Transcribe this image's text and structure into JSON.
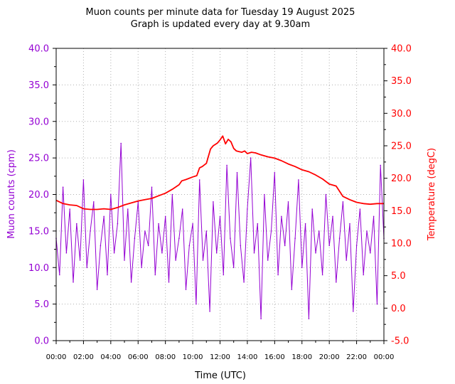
{
  "chart_data": {
    "type": "line",
    "title": "Muon counts per minute data for Tuesday 19 August 2025",
    "subtitle": "Graph is updated every day at 9.30am",
    "xlabel": "Time (UTC)",
    "ylabel": "Muon counts (cpm)",
    "ylabel_right": "Temperature (degC)",
    "x_ticks": [
      "00:00",
      "02:00",
      "04:00",
      "06:00",
      "08:00",
      "10:00",
      "12:00",
      "14:00",
      "16:00",
      "18:00",
      "20:00",
      "22:00",
      "00:00"
    ],
    "y_ticks_left": [
      "0.0",
      "5.0",
      "10.0",
      "15.0",
      "20.0",
      "25.0",
      "30.0",
      "35.0",
      "40.0"
    ],
    "y_ticks_right": [
      "-5.0",
      "0.0",
      "5.0",
      "10.0",
      "15.0",
      "20.0",
      "25.0",
      "30.0",
      "35.0",
      "40.0"
    ],
    "xlim": [
      0,
      24
    ],
    "ylim_left": [
      0,
      40
    ],
    "ylim_right": [
      -5,
      40
    ],
    "grid": true,
    "colors": {
      "muon": "#9400d3",
      "temperature": "#ff0000"
    },
    "series": [
      {
        "axis": "left",
        "x": [
          0.0,
          0.25,
          0.5,
          0.75,
          1.0,
          1.25,
          1.5,
          1.75,
          2.0,
          2.25,
          2.5,
          2.75,
          3.0,
          3.25,
          3.5,
          3.75,
          4.0,
          4.25,
          4.5,
          4.75,
          5.0,
          5.25,
          5.5,
          5.75,
          6.0,
          6.25,
          6.5,
          6.75,
          7.0,
          7.25,
          7.5,
          7.75,
          8.0,
          8.25,
          8.5,
          8.75,
          9.0,
          9.25,
          9.5,
          9.75,
          10.0,
          10.25,
          10.5,
          10.75,
          11.0,
          11.25,
          11.5,
          11.75,
          12.0,
          12.25,
          12.5,
          12.75,
          13.0,
          13.25,
          13.5,
          13.75,
          14.0,
          14.25,
          14.5,
          14.75,
          15.0,
          15.25,
          15.5,
          15.75,
          16.0,
          16.25,
          16.5,
          16.75,
          17.0,
          17.25,
          17.5,
          17.75,
          18.0,
          18.25,
          18.5,
          18.75,
          19.0,
          19.25,
          19.5,
          19.75,
          20.0,
          20.25,
          20.5,
          20.75,
          21.0,
          21.25,
          21.5,
          21.75,
          22.0,
          22.25,
          22.5,
          22.75,
          23.0,
          23.25,
          23.5,
          23.75,
          24.0
        ],
        "values": [
          14,
          9,
          21,
          12,
          18,
          8,
          16,
          11,
          22,
          10,
          15,
          19,
          7,
          13,
          17,
          9,
          20,
          12,
          16,
          27,
          11,
          18,
          8,
          14,
          19,
          10,
          15,
          13,
          21,
          9,
          16,
          12,
          17,
          8,
          20,
          11,
          14,
          18,
          7,
          13,
          16,
          5,
          22,
          11,
          15,
          4,
          19,
          12,
          17,
          9,
          24,
          14,
          10,
          23,
          13,
          8,
          18,
          25,
          12,
          16,
          3,
          20,
          11,
          15,
          23,
          9,
          17,
          13,
          19,
          7,
          14,
          22,
          10,
          16,
          3,
          18,
          12,
          15,
          9,
          20,
          13,
          17,
          8,
          14,
          19,
          11,
          16,
          4,
          13,
          18,
          9,
          15,
          12,
          17,
          5,
          24,
          14
        ]
      },
      {
        "axis": "right",
        "x": [
          0.0,
          0.5,
          1.0,
          1.5,
          2.0,
          2.5,
          3.0,
          3.5,
          4.0,
          4.5,
          5.0,
          5.5,
          6.0,
          6.5,
          7.0,
          7.5,
          8.0,
          8.5,
          9.0,
          9.2,
          9.5,
          10.0,
          10.3,
          10.5,
          10.7,
          11.0,
          11.3,
          11.5,
          11.8,
          12.0,
          12.2,
          12.4,
          12.6,
          12.8,
          13.0,
          13.2,
          13.4,
          13.6,
          13.8,
          14.0,
          14.3,
          14.6,
          15.0,
          15.5,
          16.0,
          16.5,
          17.0,
          17.5,
          18.0,
          18.5,
          19.0,
          19.5,
          20.0,
          20.5,
          21.0,
          21.5,
          22.0,
          22.5,
          23.0,
          23.5,
          24.0
        ],
        "values": [
          16.6,
          16.1,
          15.9,
          15.8,
          15.3,
          15.2,
          15.2,
          15.3,
          15.2,
          15.5,
          15.9,
          16.2,
          16.5,
          16.7,
          16.9,
          17.3,
          17.7,
          18.3,
          19.0,
          19.6,
          19.8,
          20.2,
          20.4,
          21.6,
          21.8,
          22.3,
          24.5,
          25.0,
          25.4,
          25.9,
          26.5,
          25.3,
          26.0,
          25.6,
          24.6,
          24.2,
          24.1,
          24.0,
          24.2,
          23.8,
          24.0,
          23.9,
          23.6,
          23.3,
          23.1,
          22.7,
          22.2,
          21.8,
          21.3,
          21.0,
          20.5,
          19.9,
          19.1,
          18.8,
          17.2,
          16.7,
          16.3,
          16.1,
          16.0,
          16.1,
          16.1
        ]
      }
    ]
  }
}
